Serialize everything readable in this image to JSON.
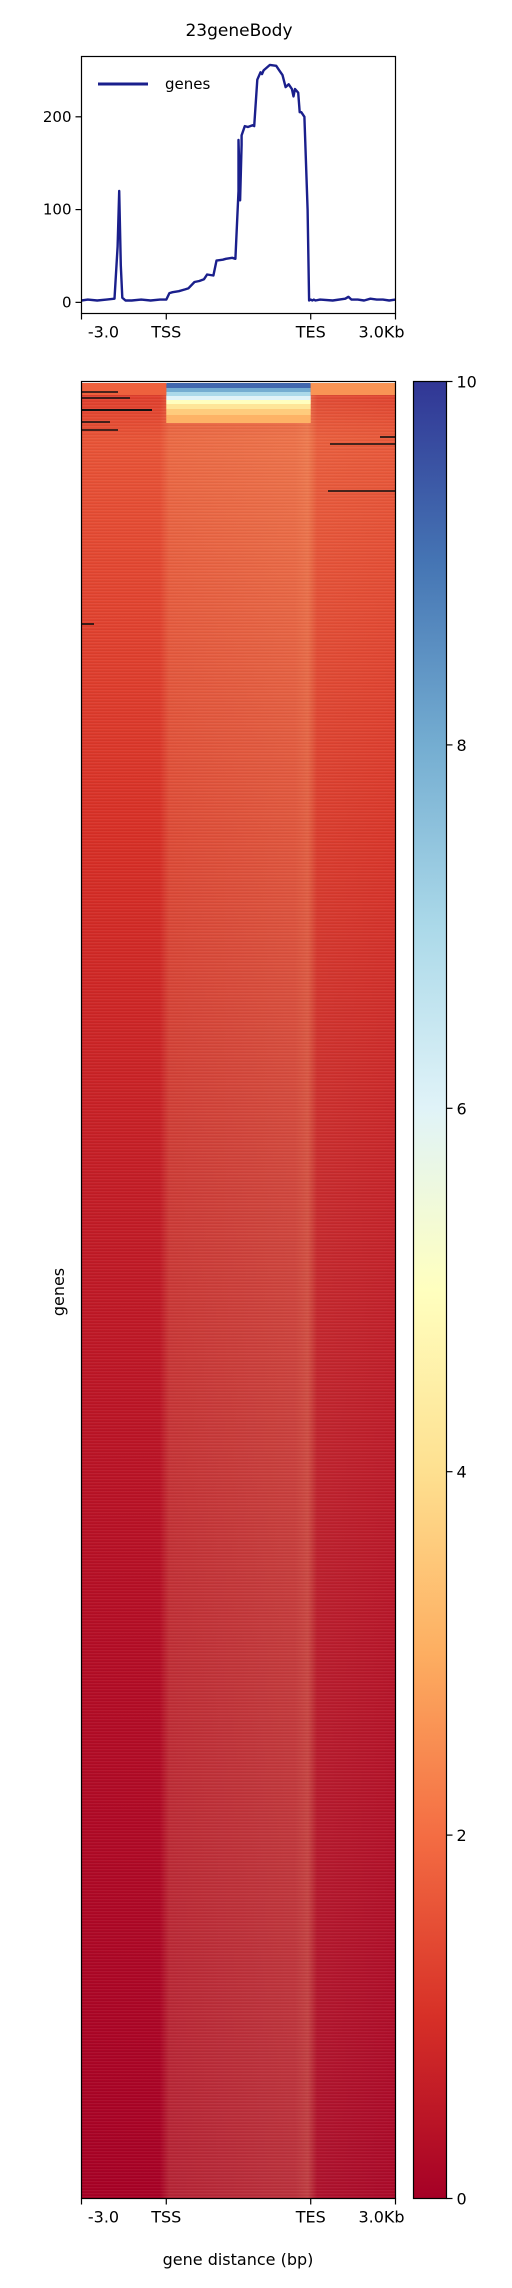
{
  "chart_data": [
    {
      "type": "line",
      "title": "23geneBody",
      "xlabel": "",
      "ylabel": "",
      "x_ticks": [
        "-3.0",
        "TSS",
        "TES",
        "3.0Kb"
      ],
      "y_ticks": [
        0,
        100,
        200
      ],
      "ylim": [
        -12,
        265
      ],
      "legend": {
        "position": "top-left",
        "entries": [
          "genes"
        ]
      },
      "series": [
        {
          "name": "genes",
          "color": "#1a1f8c",
          "x": [
            0,
            0.02,
            0.05,
            0.08,
            0.105,
            0.115,
            0.12,
            0.125,
            0.13,
            0.14,
            0.16,
            0.19,
            0.22,
            0.25,
            0.27,
            0.28,
            0.29,
            0.31,
            0.33,
            0.34,
            0.36,
            0.375,
            0.39,
            0.4,
            0.42,
            0.43,
            0.45,
            0.46,
            0.48,
            0.49,
            0.5,
            0.5,
            0.505,
            0.51,
            0.51,
            0.52,
            0.53,
            0.545,
            0.55,
            0.56,
            0.57,
            0.575,
            0.58,
            0.6,
            0.62,
            0.63,
            0.64,
            0.65,
            0.66,
            0.67,
            0.675,
            0.68,
            0.69,
            0.695,
            0.7,
            0.71,
            0.72,
            0.725,
            0.73,
            0.735,
            0.74,
            0.745,
            0.76,
            0.8,
            0.84,
            0.85,
            0.86,
            0.88,
            0.9,
            0.92,
            0.94,
            0.96,
            0.98,
            1.0
          ],
          "values": [
            2,
            3,
            2,
            3,
            4,
            60,
            120,
            40,
            5,
            2,
            2,
            3,
            2,
            3,
            3,
            10,
            11,
            12,
            14,
            15,
            22,
            23,
            25,
            30,
            29,
            45,
            46,
            47,
            48,
            47,
            120,
            175,
            110,
            170,
            180,
            190,
            189,
            191,
            190,
            240,
            248,
            246,
            250,
            256,
            255,
            250,
            245,
            232,
            235,
            230,
            222,
            230,
            226,
            205,
            205,
            200,
            100,
            2,
            3,
            2,
            3,
            2,
            3,
            2,
            4,
            6,
            3,
            3,
            2,
            4,
            3,
            3,
            2,
            3
          ]
        }
      ]
    },
    {
      "type": "heatmap",
      "xlabel": "gene distance (bp)",
      "ylabel": "genes",
      "x_ticks": [
        "-3.0",
        "TSS",
        "TES",
        "3.0Kb"
      ],
      "colorbar": {
        "ticks": [
          0,
          2,
          4,
          6,
          8,
          10
        ],
        "range": [
          0,
          10
        ],
        "colors": [
          "#a50026",
          "#d73027",
          "#f46d43",
          "#fdae61",
          "#fee090",
          "#ffffbf",
          "#e0f3f8",
          "#abd9e9",
          "#74add1",
          "#4575b4",
          "#313695"
        ]
      },
      "profile_by_rank": [
        {
          "rank": 0.0,
          "flank": 1.2,
          "body": 8.5
        },
        {
          "rank": 0.01,
          "flank": 1.3,
          "body": 6.0
        },
        {
          "rank": 0.03,
          "flank": 1.6,
          "body": 3.2
        },
        {
          "rank": 0.1,
          "flank": 1.4,
          "body": 2.6
        },
        {
          "rank": 0.25,
          "flank": 1.0,
          "body": 1.5
        },
        {
          "rank": 0.45,
          "flank": 0.6,
          "body": 0.7
        },
        {
          "rank": 0.7,
          "flank": 0.3,
          "body": 0.3
        },
        {
          "rank": 1.0,
          "flank": 0.05,
          "body": 0.05
        }
      ]
    }
  ]
}
